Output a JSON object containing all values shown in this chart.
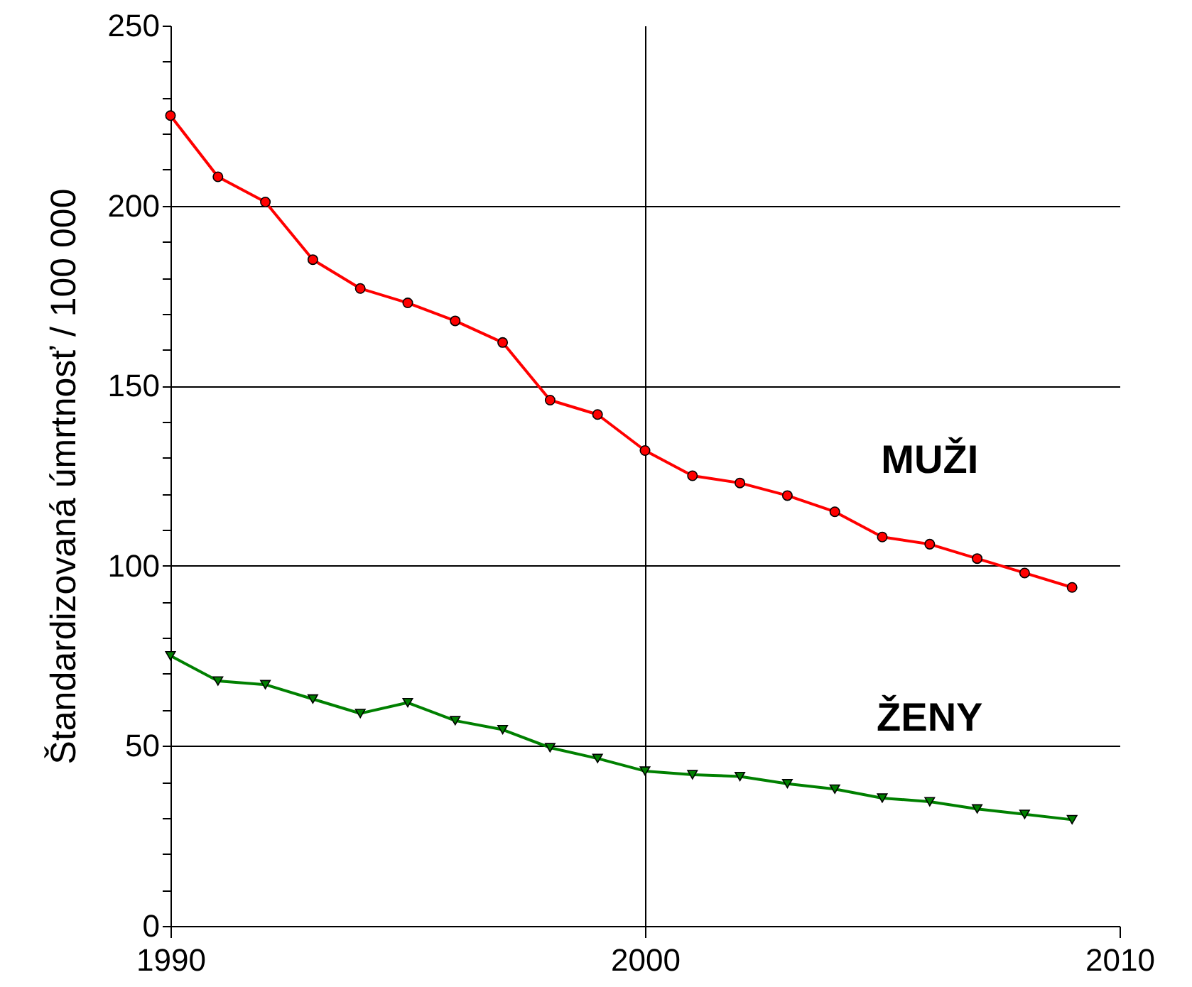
{
  "chart_data": {
    "type": "line",
    "ylabel": "Štandardizovaná úmrtnosť / 100 000",
    "x": [
      1990,
      1991,
      1992,
      1993,
      1994,
      1995,
      1996,
      1997,
      1998,
      1999,
      2000,
      2001,
      2002,
      2003,
      2004,
      2005,
      2006,
      2007,
      2008,
      2009
    ],
    "series": [
      {
        "name": "MUŽI",
        "color": "#ff0000",
        "marker": "circle",
        "values": [
          225,
          208,
          201,
          185,
          177,
          173,
          168,
          162,
          146,
          142,
          132,
          125,
          123,
          119.5,
          115,
          108,
          106,
          102,
          98,
          94
        ]
      },
      {
        "name": "ŽENY",
        "color": "#008000",
        "marker": "triangle",
        "values": [
          75,
          68,
          67,
          63,
          59,
          62,
          57,
          54.5,
          49.5,
          46.5,
          43,
          42,
          41.5,
          39.5,
          38,
          35.5,
          34.5,
          32.5,
          31,
          29.5
        ]
      }
    ],
    "xlim": [
      1990,
      2010
    ],
    "xticks": [
      1990,
      2000,
      2010
    ],
    "ylim": [
      0,
      250
    ],
    "yticks": [
      0,
      {
        "value": 10,
        "label": null
      },
      {
        "value": 20,
        "label": null
      },
      {
        "value": 30,
        "label": null
      },
      {
        "value": 40,
        "label": null
      },
      50,
      {
        "value": 60,
        "label": null
      },
      {
        "value": 70,
        "label": null
      },
      {
        "value": 80,
        "label": null
      },
      {
        "value": 90,
        "label": null
      },
      100,
      {
        "value": 110,
        "label": null
      },
      {
        "value": 120,
        "label": null
      },
      {
        "value": 130,
        "label": null
      },
      {
        "value": 140,
        "label": null
      },
      150,
      {
        "value": 160,
        "label": null
      },
      {
        "value": 170,
        "label": null
      },
      {
        "value": 180,
        "label": null
      },
      {
        "value": 190,
        "label": null
      },
      200,
      {
        "value": 210,
        "label": null
      },
      {
        "value": 220,
        "label": null
      },
      {
        "value": 230,
        "label": null
      },
      {
        "value": 240,
        "label": null
      },
      250
    ],
    "grid": true,
    "line_style": "solid"
  }
}
